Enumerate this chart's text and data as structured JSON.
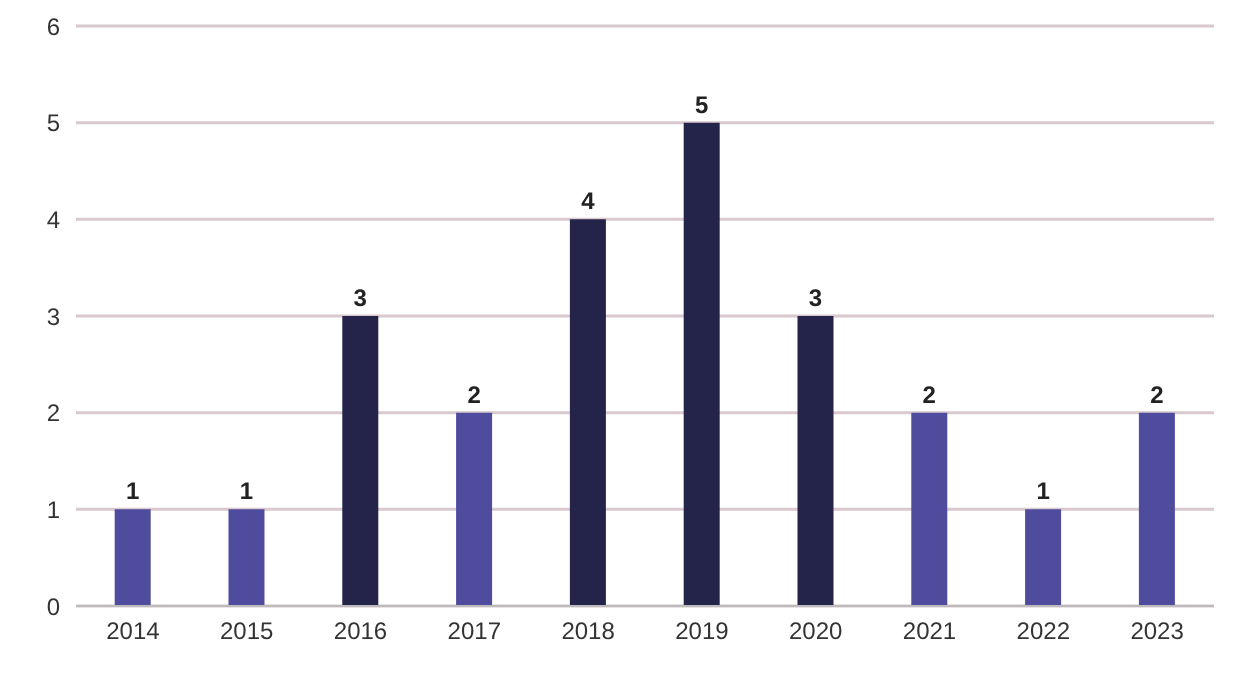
{
  "chart_data": {
    "type": "bar",
    "categories": [
      "2014",
      "2015",
      "2016",
      "2017",
      "2018",
      "2019",
      "2020",
      "2021",
      "2022",
      "2023"
    ],
    "values": [
      1,
      1,
      3,
      2,
      4,
      5,
      3,
      2,
      1,
      2
    ],
    "colors": [
      "#4f4c9e",
      "#4f4c9e",
      "#24234a",
      "#4f4c9e",
      "#24234a",
      "#24234a",
      "#24234a",
      "#4f4c9e",
      "#4f4c9e",
      "#4f4c9e"
    ],
    "ylim": [
      0,
      6
    ],
    "yticks": [
      0,
      1,
      2,
      3,
      4,
      5,
      6
    ],
    "grid": "y",
    "data_labels": true
  }
}
